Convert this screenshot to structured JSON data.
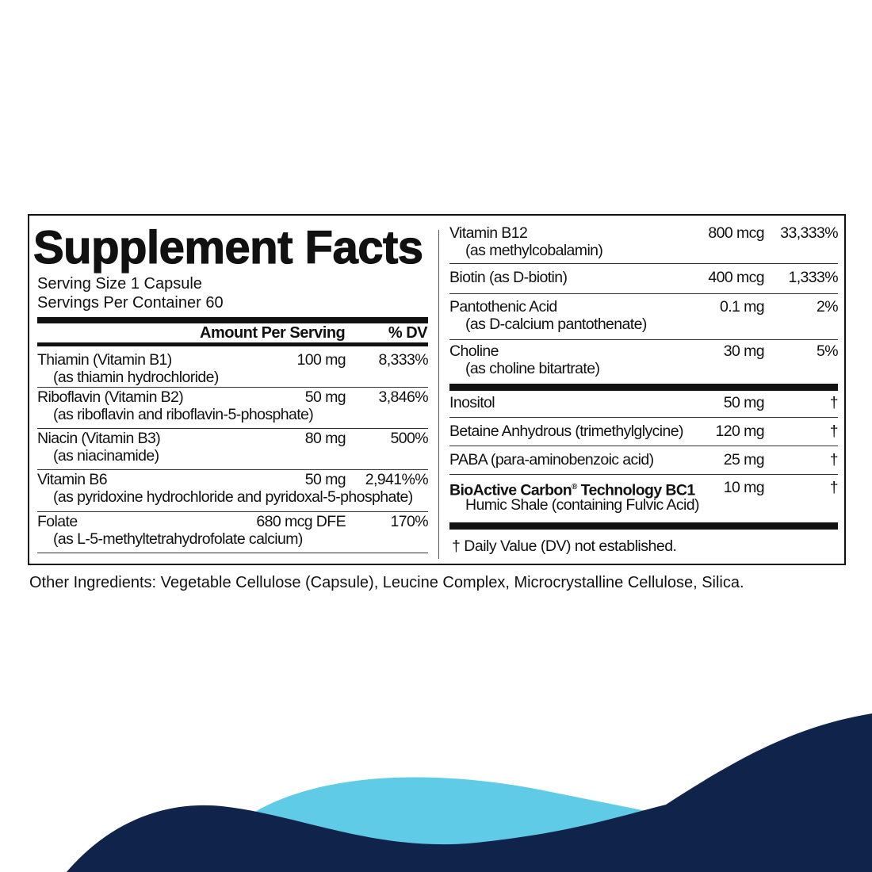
{
  "label": {
    "title": "Supplement Facts",
    "serving_size": "Serving Size 1 Capsule",
    "servings_per_container": "Servings Per Container 60",
    "header_amount": "Amount Per Serving",
    "header_dv": "% DV",
    "left_rows": [
      {
        "name": "Thiamin (Vitamin B1)",
        "sub": "(as thiamin hydrochloride)",
        "amount": "100 mg",
        "dv": "8,333%"
      },
      {
        "name": "Riboflavin (Vitamin B2)",
        "sub": "(as riboflavin and riboflavin-5-phosphate)",
        "amount": "50 mg",
        "dv": "3,846%"
      },
      {
        "name": "Niacin (Vitamin B3)",
        "sub": "(as niacinamide)",
        "amount": "80 mg",
        "dv": "500%"
      },
      {
        "name": "Vitamin B6",
        "sub": "(as pyridoxine hydrochloride and pyridoxal-5-phosphate)",
        "amount": "50 mg",
        "dv": "2,941%%"
      },
      {
        "name": "Folate",
        "sub": "(as L-5-methyltetrahydrofolate calcium)",
        "amount": "680 mcg DFE",
        "dv": "170%"
      }
    ],
    "right_rows": [
      {
        "name": "Vitamin B12",
        "sub": "(as methylcobalamin)",
        "amount": "800 mcg",
        "dv": "33,333%"
      },
      {
        "name": "Biotin (as D-biotin)",
        "sub": "",
        "amount": "400 mcg",
        "dv": "1,333%"
      },
      {
        "name": "Pantothenic Acid",
        "sub": "(as D-calcium pantothenate)",
        "amount": "0.1 mg",
        "dv": "2%"
      },
      {
        "name": "Choline",
        "sub": "(as choline bitartrate)",
        "amount": "30 mg",
        "dv": "5%"
      }
    ],
    "other_rows": [
      {
        "name": "Inositol",
        "sub": "",
        "amount": "50 mg",
        "dv": "†"
      },
      {
        "name": "Betaine Anhydrous (trimethylglycine)",
        "sub": "",
        "amount": "120 mg",
        "dv": "†"
      },
      {
        "name": "PABA (para-aminobenzoic acid)",
        "sub": "",
        "amount": "25 mg",
        "dv": "†"
      },
      {
        "name": "BioActive Carbon",
        "name_mark": "®",
        "name_rest": " Technology BC1",
        "sub": "Humic Shale (containing Fulvic Acid)",
        "amount": "10 mg",
        "dv": "†"
      }
    ],
    "footnote": "† Daily Value (DV) not established."
  },
  "other_ingredients": "Other Ingredients: Vegetable Cellulose (Capsule), Leucine Complex, Microcrystalline Cellulose, Silica.",
  "colors": {
    "navy": "#10234a",
    "light_blue": "#5fcbe6",
    "text": "#111111"
  }
}
